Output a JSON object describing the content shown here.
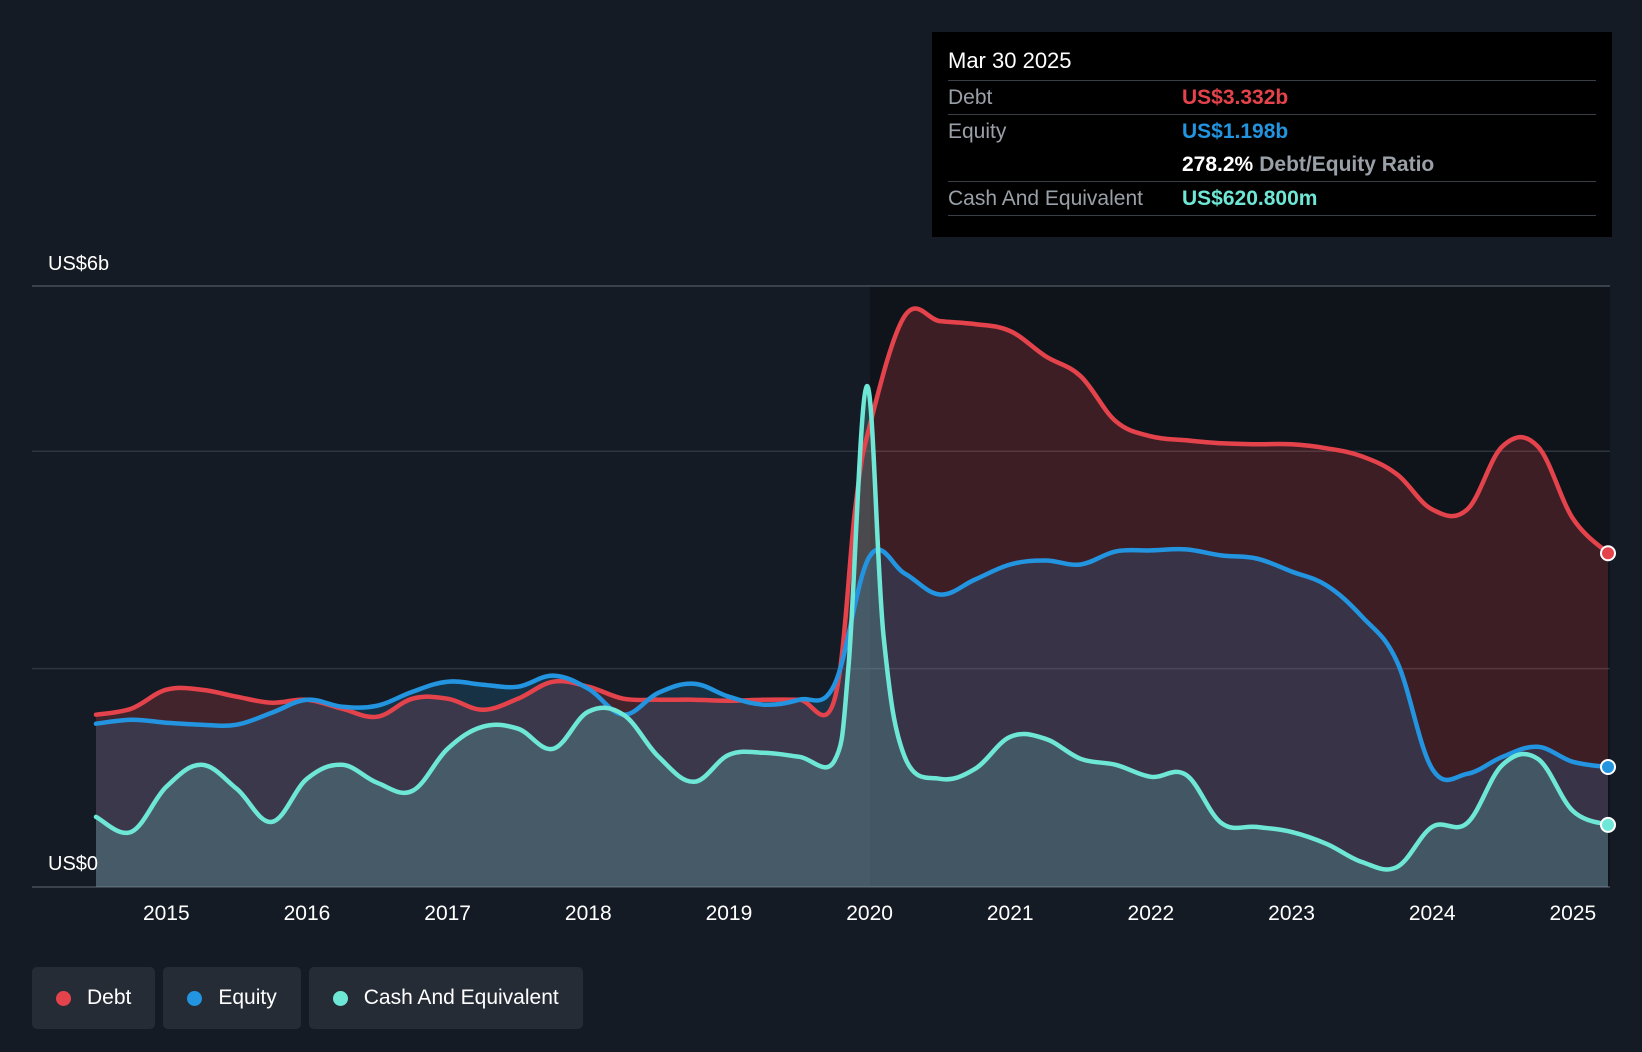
{
  "tooltip": {
    "date": "Mar 30 2025",
    "debt_label": "Debt",
    "debt_value": "US$3.332b",
    "equity_label": "Equity",
    "equity_value": "US$1.198b",
    "ratio_value": "278.2%",
    "ratio_label": "Debt/Equity Ratio",
    "cash_label": "Cash And Equivalent",
    "cash_value": "US$620.800m"
  },
  "legend": {
    "debt": "Debt",
    "equity": "Equity",
    "cash": "Cash And Equivalent"
  },
  "colors": {
    "debt": "#e5434b",
    "equity": "#2394df",
    "cash": "#6ee7d6",
    "background": "#151b24"
  },
  "chart_data": {
    "type": "area",
    "y_top_label": "US$6b",
    "y_bottom_label": "US$0",
    "ylim": [
      0,
      6
    ],
    "y_unit": "US$ billions",
    "xlim": [
      2014.5,
      2025.25
    ],
    "x_ticks": [
      "2015",
      "2016",
      "2017",
      "2018",
      "2019",
      "2020",
      "2021",
      "2022",
      "2023",
      "2024",
      "2025"
    ],
    "grid": true,
    "legend_position": "bottom-left",
    "series": [
      {
        "name": "Debt",
        "x": [
          2014.5,
          2014.75,
          2015.0,
          2015.25,
          2015.5,
          2015.75,
          2016.0,
          2016.25,
          2016.5,
          2016.75,
          2017.0,
          2017.25,
          2017.5,
          2017.75,
          2018.0,
          2018.25,
          2018.5,
          2018.75,
          2019.0,
          2019.25,
          2019.5,
          2019.75,
          2019.9,
          2020.0,
          2020.25,
          2020.5,
          2020.75,
          2021.0,
          2021.25,
          2021.5,
          2021.75,
          2022.0,
          2022.25,
          2022.5,
          2022.75,
          2023.0,
          2023.25,
          2023.5,
          2023.75,
          2024.0,
          2024.25,
          2024.5,
          2024.75,
          2025.0,
          2025.25
        ],
        "values": [
          1.72,
          1.78,
          1.97,
          1.97,
          1.9,
          1.84,
          1.87,
          1.78,
          1.7,
          1.88,
          1.88,
          1.77,
          1.88,
          2.05,
          2.0,
          1.88,
          1.87,
          1.87,
          1.86,
          1.87,
          1.87,
          1.87,
          3.8,
          4.6,
          5.7,
          5.65,
          5.62,
          5.55,
          5.3,
          5.1,
          4.65,
          4.5,
          4.46,
          4.43,
          4.42,
          4.42,
          4.38,
          4.3,
          4.12,
          3.77,
          3.77,
          4.4,
          4.4,
          3.68,
          3.332
        ]
      },
      {
        "name": "Equity",
        "x": [
          2014.5,
          2014.75,
          2015.0,
          2015.25,
          2015.5,
          2015.75,
          2016.0,
          2016.25,
          2016.5,
          2016.75,
          2017.0,
          2017.25,
          2017.5,
          2017.75,
          2018.0,
          2018.25,
          2018.5,
          2018.75,
          2019.0,
          2019.25,
          2019.5,
          2019.75,
          2020.0,
          2020.25,
          2020.5,
          2020.75,
          2021.0,
          2021.25,
          2021.5,
          2021.75,
          2022.0,
          2022.25,
          2022.5,
          2022.75,
          2023.0,
          2023.25,
          2023.5,
          2023.75,
          2024.0,
          2024.25,
          2024.5,
          2024.75,
          2025.0,
          2025.25
        ],
        "values": [
          1.63,
          1.67,
          1.64,
          1.62,
          1.62,
          1.74,
          1.87,
          1.8,
          1.81,
          1.95,
          2.05,
          2.02,
          2.0,
          2.11,
          1.98,
          1.72,
          1.94,
          2.03,
          1.9,
          1.82,
          1.87,
          2.02,
          3.3,
          3.13,
          2.92,
          3.07,
          3.22,
          3.26,
          3.22,
          3.35,
          3.36,
          3.37,
          3.31,
          3.28,
          3.15,
          3.01,
          2.7,
          2.25,
          1.18,
          1.13,
          1.3,
          1.4,
          1.25,
          1.198
        ]
      },
      {
        "name": "Cash And Equivalent",
        "x": [
          2014.5,
          2014.75,
          2015.0,
          2015.25,
          2015.5,
          2015.75,
          2016.0,
          2016.25,
          2016.5,
          2016.75,
          2017.0,
          2017.25,
          2017.5,
          2017.75,
          2018.0,
          2018.25,
          2018.5,
          2018.75,
          2019.0,
          2019.25,
          2019.5,
          2019.75,
          2019.85,
          2019.98,
          2020.1,
          2020.25,
          2020.5,
          2020.75,
          2021.0,
          2021.25,
          2021.5,
          2021.75,
          2022.0,
          2022.25,
          2022.5,
          2022.75,
          2023.0,
          2023.25,
          2023.5,
          2023.75,
          2024.0,
          2024.25,
          2024.5,
          2024.75,
          2025.0,
          2025.25
        ],
        "values": [
          0.7,
          0.55,
          1.0,
          1.22,
          0.98,
          0.65,
          1.08,
          1.22,
          1.04,
          0.96,
          1.38,
          1.6,
          1.58,
          1.38,
          1.75,
          1.72,
          1.3,
          1.05,
          1.32,
          1.34,
          1.3,
          1.26,
          2.2,
          5.0,
          2.5,
          1.3,
          1.08,
          1.18,
          1.5,
          1.48,
          1.28,
          1.22,
          1.1,
          1.12,
          0.64,
          0.6,
          0.55,
          0.43,
          0.25,
          0.2,
          0.6,
          0.64,
          1.22,
          1.28,
          0.76,
          0.62
        ]
      }
    ]
  }
}
